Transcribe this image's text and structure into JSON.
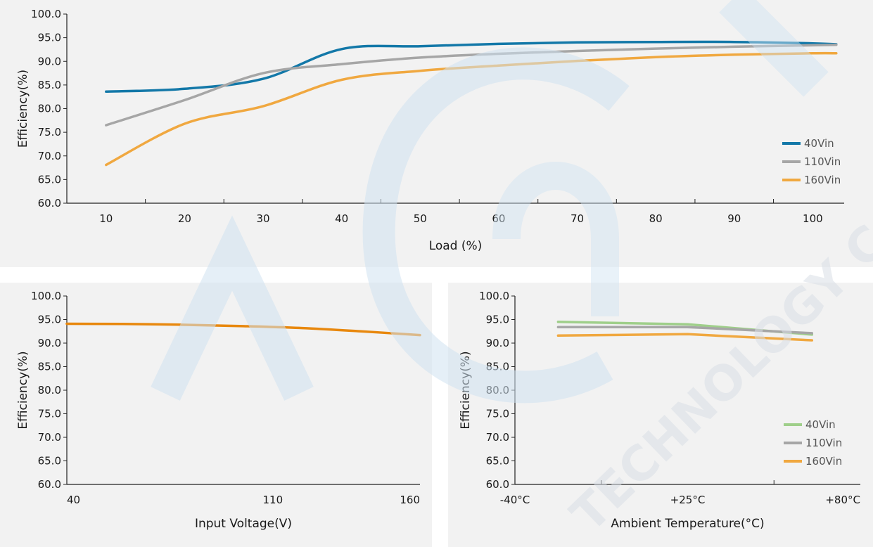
{
  "chart_data": [
    {
      "id": "load",
      "type": "line",
      "xlabel": "Load (%)",
      "ylabel": "Efficiency(%)",
      "xlim": [
        5,
        104
      ],
      "ylim": [
        60,
        100
      ],
      "yticks": [
        "60.0",
        "65.0",
        "70.0",
        "75.0",
        "80.0",
        "85.0",
        "90.0",
        "95.0",
        "100.0"
      ],
      "xticks": [
        "10",
        "20",
        "30",
        "40",
        "50",
        "60",
        "70",
        "80",
        "90",
        "100"
      ],
      "legend_position": "bottom-right",
      "series": [
        {
          "name": "40Vin",
          "color": "#1378a8",
          "x": [
            10,
            20,
            30,
            40,
            50,
            60,
            70,
            80,
            90,
            100,
            103
          ],
          "y": [
            83.6,
            84.2,
            86.3,
            92.6,
            93.2,
            93.7,
            94.0,
            94.1,
            94.1,
            93.8,
            93.6
          ]
        },
        {
          "name": "110Vin",
          "color": "#a6a6a6",
          "x": [
            10,
            20,
            30,
            40,
            50,
            60,
            70,
            80,
            90,
            100,
            103
          ],
          "y": [
            76.5,
            81.8,
            87.5,
            89.4,
            90.8,
            91.6,
            92.2,
            92.7,
            93.1,
            93.4,
            93.5
          ]
        },
        {
          "name": "160Vin",
          "color": "#f0a840",
          "x": [
            10,
            20,
            30,
            40,
            50,
            60,
            70,
            80,
            90,
            100,
            103
          ],
          "y": [
            68.1,
            76.8,
            80.5,
            86.1,
            88.0,
            89.1,
            90.1,
            90.9,
            91.4,
            91.7,
            91.7
          ]
        }
      ]
    },
    {
      "id": "voltage",
      "type": "line",
      "xlabel": "Input Voltage(V)",
      "ylabel": "Efficiency(%)",
      "xlim": [
        40,
        160
      ],
      "ylim": [
        60,
        100
      ],
      "yticks": [
        "60.0",
        "65.0",
        "70.0",
        "75.0",
        "80.0",
        "85.0",
        "90.0",
        "95.0",
        "100.0"
      ],
      "xticks": [
        "40",
        "110",
        "160"
      ],
      "series": [
        {
          "color": "#e8880e",
          "x": [
            40,
            70,
            100,
            120,
            140,
            160
          ],
          "y": [
            94.1,
            94.0,
            93.6,
            93.2,
            92.5,
            91.7
          ]
        }
      ]
    },
    {
      "id": "temperature",
      "type": "line",
      "xlabel": "Ambient Temperature(°C)",
      "ylabel": "Efficiency(%)",
      "xlim": [
        0,
        2
      ],
      "ylim": [
        60,
        100
      ],
      "yticks": [
        "60.0",
        "65.0",
        "70.0",
        "75.0",
        "80.0",
        "85.0",
        "90.0",
        "95.0",
        "100.0"
      ],
      "xticks": [
        "-40°C",
        "+25°C",
        "+80°C"
      ],
      "legend_position": "bottom-right",
      "series": [
        {
          "name": "40Vin",
          "color": "#9fcf8a",
          "x": [
            0.25,
            1.0,
            1.72
          ],
          "y": [
            94.5,
            94.0,
            91.8
          ]
        },
        {
          "name": "110Vin",
          "color": "#a6a6a6",
          "x": [
            0.25,
            1.0,
            1.72
          ],
          "y": [
            93.4,
            93.4,
            92.1
          ]
        },
        {
          "name": "160Vin",
          "color": "#f0a840",
          "x": [
            0.25,
            1.0,
            1.72
          ],
          "y": [
            91.6,
            91.9,
            90.6
          ]
        }
      ]
    }
  ],
  "watermark": {
    "text": "TECHNOLOGY COM"
  }
}
